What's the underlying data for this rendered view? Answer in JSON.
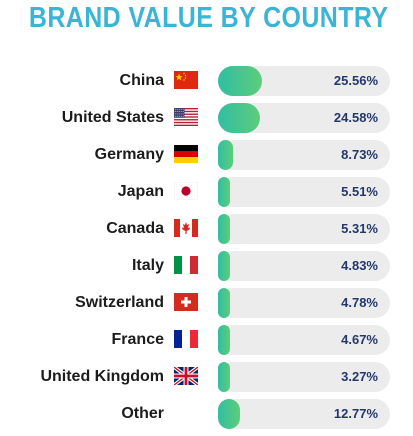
{
  "colors": {
    "title": "#3bb5d6",
    "label": "#1c1c1c",
    "value": "#23386b",
    "bar_start": "#2fbfa2",
    "bar_end": "#5fcc7a",
    "track": "#ececec"
  },
  "chart_data": {
    "type": "bar",
    "orientation": "horizontal",
    "title": "BRAND VALUE BY COUNTRY",
    "xlim": [
      0,
      100
    ],
    "unit": "%",
    "grid": false,
    "categories": [
      "China",
      "United States",
      "Germany",
      "Japan",
      "Canada",
      "Italy",
      "Switzerland",
      "France",
      "United Kingdom",
      "Other"
    ],
    "values": [
      25.56,
      24.58,
      8.73,
      5.51,
      5.31,
      4.83,
      4.78,
      4.67,
      3.27,
      12.77
    ],
    "value_labels": [
      "25.56%",
      "24.58%",
      "8.73%",
      "5.51%",
      "5.31%",
      "4.83%",
      "4.78%",
      "4.67%",
      "3.27%",
      "12.77%"
    ],
    "flags": [
      "china-flag-icon",
      "usa-flag-icon",
      "germany-flag-icon",
      "japan-flag-icon",
      "canada-flag-icon",
      "italy-flag-icon",
      "switzerland-flag-icon",
      "france-flag-icon",
      "uk-flag-icon",
      ""
    ]
  }
}
